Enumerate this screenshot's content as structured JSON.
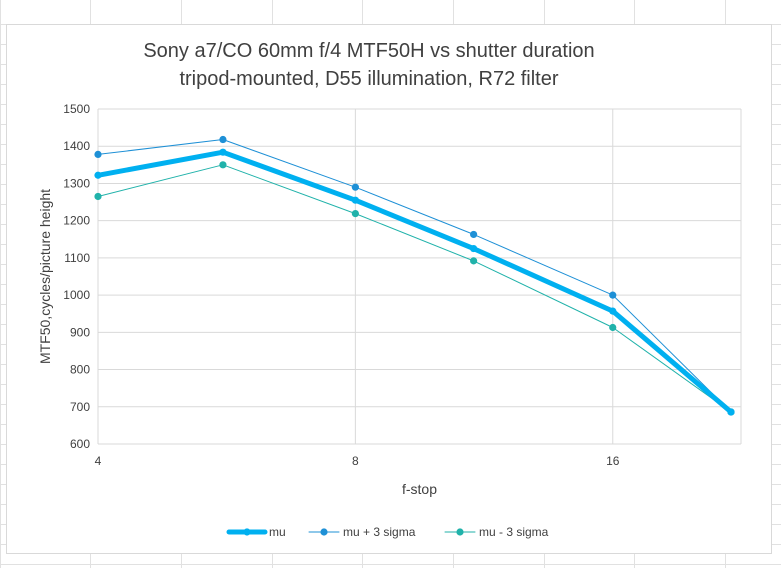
{
  "chart_data": {
    "type": "line",
    "title": [
      "Sony a7/CO 60mm f/4 MTF50H vs shutter duration",
      "tripod-mounted, D55 illumination, R72 filter"
    ],
    "xlabel": "f-stop",
    "ylabel": "MTF50,cycles/picture height",
    "x_scale": "log2",
    "x_ticks": [
      4,
      8,
      16
    ],
    "xlim": [
      4,
      22.6
    ],
    "ylim": [
      600,
      1500
    ],
    "y_ticks": [
      600,
      700,
      800,
      900,
      1000,
      1100,
      1200,
      1300,
      1400,
      1500
    ],
    "x": [
      4,
      5.6,
      8,
      11,
      16,
      22
    ],
    "series": [
      {
        "name": "mu",
        "values": [
          1322,
          1384,
          1255,
          1125,
          957,
          686
        ],
        "color": "#00b0f0",
        "width": 5
      },
      {
        "name": "mu +  3 sigma",
        "values": [
          1378,
          1418,
          1290,
          1163,
          1000,
          686
        ],
        "color": "#1e90d6",
        "width": 1
      },
      {
        "name": "mu -  3 sigma",
        "values": [
          1265,
          1350,
          1219,
          1092,
          913,
          686
        ],
        "color": "#20b2aa",
        "width": 1
      }
    ],
    "grid": "both",
    "legend_position": "bottom"
  }
}
